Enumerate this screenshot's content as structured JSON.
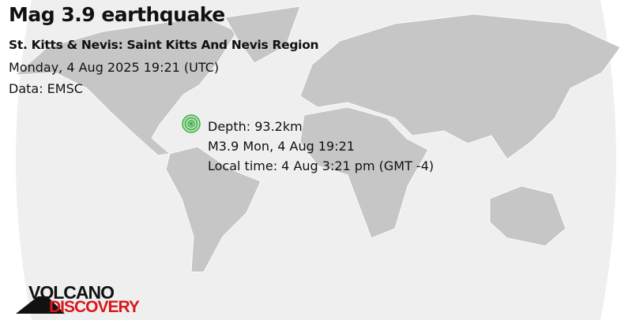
{
  "title": "Mag 3.9 earthquake",
  "region": "St. Kitts & Nevis: Saint Kitts And Nevis Region",
  "datetime": "Monday,  4 Aug 2025 19:21 (UTC)",
  "data_source": "Data: EMSC",
  "info": {
    "depth": "Depth: 93.2km",
    "summary": "M3.9 Mon,  4 Aug 19:21",
    "local_time": "Local time: 4 Aug 3:21 pm (GMT -4)"
  },
  "logo": {
    "line1": "VOLCANO",
    "line2": "DISCOVERY"
  },
  "colors": {
    "land": "#c6c6c6",
    "ocean": "#efefef",
    "marker": "#3cb043",
    "logo_red": "#d7191c"
  },
  "marker_icon": "epicenter-rings-icon"
}
